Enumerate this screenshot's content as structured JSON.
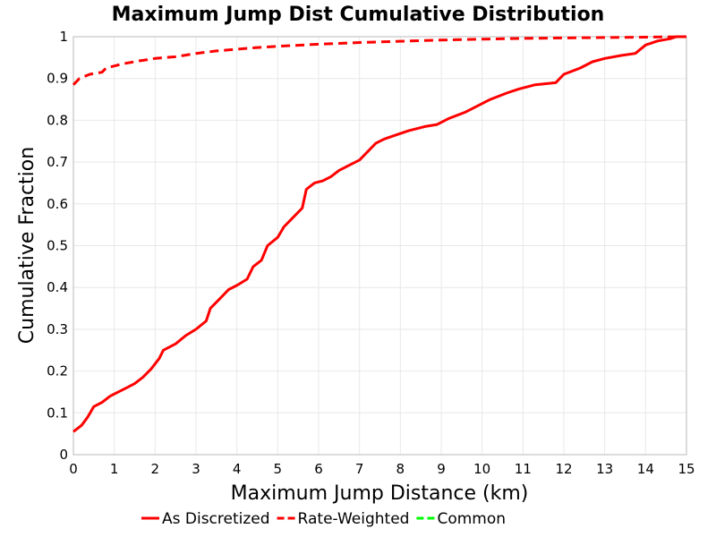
{
  "chart_data": {
    "type": "line",
    "title": "Maximum Jump Dist Cumulative Distribution",
    "xlabel": "Maximum Jump Distance (km)",
    "ylabel": "Cumulative Fraction",
    "xlim": [
      0,
      15
    ],
    "ylim": [
      0,
      1
    ],
    "xticks": [
      "0",
      "1",
      "2",
      "3",
      "4",
      "5",
      "6",
      "7",
      "8",
      "9",
      "10",
      "11",
      "12",
      "13",
      "14",
      "15"
    ],
    "yticks": [
      "0",
      "0.1",
      "0.2",
      "0.3",
      "0.4",
      "0.5",
      "0.6",
      "0.7",
      "0.8",
      "0.9",
      "1"
    ],
    "grid": true,
    "legend_position": "bottom",
    "series": [
      {
        "name": "As Discretized",
        "color": "#ff0000",
        "dash": "solid",
        "points": [
          [
            0,
            0.055
          ],
          [
            0.2,
            0.07
          ],
          [
            0.35,
            0.09
          ],
          [
            0.5,
            0.115
          ],
          [
            0.7,
            0.125
          ],
          [
            0.9,
            0.14
          ],
          [
            1.1,
            0.15
          ],
          [
            1.3,
            0.16
          ],
          [
            1.5,
            0.17
          ],
          [
            1.7,
            0.185
          ],
          [
            1.9,
            0.205
          ],
          [
            2.1,
            0.23
          ],
          [
            2.2,
            0.25
          ],
          [
            2.5,
            0.265
          ],
          [
            2.75,
            0.285
          ],
          [
            3.0,
            0.3
          ],
          [
            3.25,
            0.32
          ],
          [
            3.35,
            0.35
          ],
          [
            3.6,
            0.375
          ],
          [
            3.8,
            0.395
          ],
          [
            4.0,
            0.405
          ],
          [
            4.25,
            0.42
          ],
          [
            4.4,
            0.45
          ],
          [
            4.6,
            0.465
          ],
          [
            4.75,
            0.5
          ],
          [
            5.0,
            0.52
          ],
          [
            5.15,
            0.545
          ],
          [
            5.4,
            0.57
          ],
          [
            5.6,
            0.59
          ],
          [
            5.7,
            0.635
          ],
          [
            5.9,
            0.65
          ],
          [
            6.1,
            0.655
          ],
          [
            6.3,
            0.665
          ],
          [
            6.5,
            0.68
          ],
          [
            6.8,
            0.695
          ],
          [
            7.0,
            0.705
          ],
          [
            7.2,
            0.725
          ],
          [
            7.4,
            0.745
          ],
          [
            7.6,
            0.755
          ],
          [
            7.9,
            0.765
          ],
          [
            8.2,
            0.775
          ],
          [
            8.6,
            0.785
          ],
          [
            8.9,
            0.79
          ],
          [
            9.2,
            0.805
          ],
          [
            9.6,
            0.82
          ],
          [
            9.9,
            0.835
          ],
          [
            10.2,
            0.85
          ],
          [
            10.6,
            0.865
          ],
          [
            10.9,
            0.875
          ],
          [
            11.3,
            0.885
          ],
          [
            11.8,
            0.89
          ],
          [
            12.0,
            0.91
          ],
          [
            12.4,
            0.925
          ],
          [
            12.7,
            0.94
          ],
          [
            13.0,
            0.948
          ],
          [
            13.4,
            0.955
          ],
          [
            13.75,
            0.96
          ],
          [
            14.0,
            0.98
          ],
          [
            14.3,
            0.99
          ],
          [
            14.6,
            0.995
          ],
          [
            14.75,
            1.0
          ],
          [
            15,
            1.0
          ]
        ]
      },
      {
        "name": "Rate-Weighted",
        "color": "#ff0000",
        "dash": "dashed",
        "points": [
          [
            0,
            0.885
          ],
          [
            0.15,
            0.9
          ],
          [
            0.4,
            0.91
          ],
          [
            0.7,
            0.915
          ],
          [
            0.8,
            0.925
          ],
          [
            1.2,
            0.935
          ],
          [
            1.6,
            0.942
          ],
          [
            2.0,
            0.948
          ],
          [
            2.5,
            0.952
          ],
          [
            3.0,
            0.96
          ],
          [
            3.5,
            0.966
          ],
          [
            4.0,
            0.97
          ],
          [
            4.5,
            0.974
          ],
          [
            5.0,
            0.977
          ],
          [
            6.0,
            0.982
          ],
          [
            7.0,
            0.986
          ],
          [
            8.0,
            0.989
          ],
          [
            9.0,
            0.992
          ],
          [
            10.0,
            0.994
          ],
          [
            11.0,
            0.996
          ],
          [
            12.0,
            0.997
          ],
          [
            13.0,
            0.998
          ],
          [
            14.0,
            0.999
          ],
          [
            15,
            1.0
          ]
        ]
      },
      {
        "name": "Common",
        "color": "#00ff00",
        "dash": "dashed",
        "points": []
      }
    ]
  }
}
